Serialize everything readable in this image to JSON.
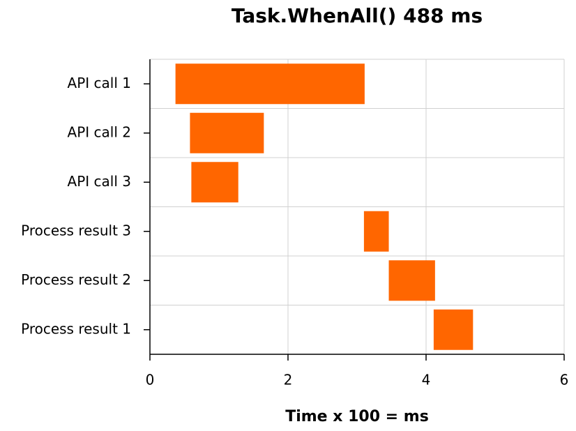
{
  "chart_data": {
    "type": "gantt",
    "title": "Task.WhenAll() 488 ms",
    "x_label": "Time x 100 = ms",
    "categories": [
      "API call 1",
      "API call 2",
      "API call 3",
      "Process result 3",
      "Process result 2",
      "Process result 1"
    ],
    "start": [
      0.37,
      0.58,
      0.6,
      3.1,
      3.46,
      4.11
    ],
    "end": [
      3.11,
      1.65,
      1.28,
      3.46,
      4.13,
      4.68
    ],
    "color": "#ff6600",
    "xlim": [
      0,
      6
    ],
    "xticks": [
      0,
      2,
      4,
      6
    ],
    "grid": true
  }
}
